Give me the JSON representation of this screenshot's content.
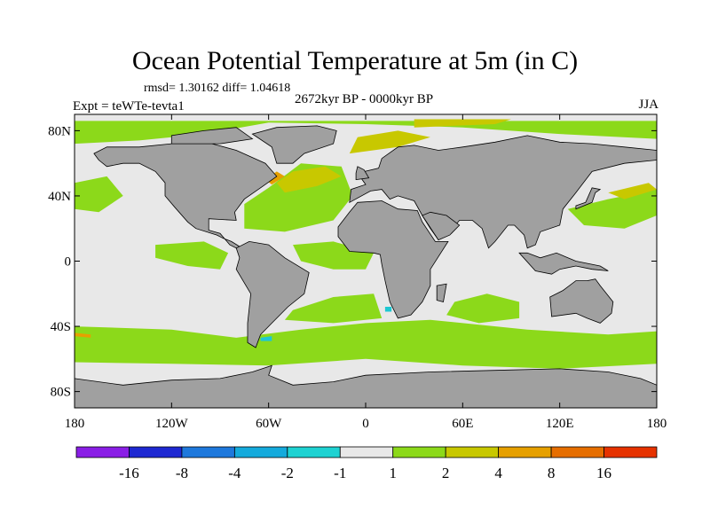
{
  "title": "Ocean Potential Temperature at 5m (in C)",
  "subtitle_stats": "rmsd= 1.30162 diff= 1.04618",
  "period_label": "2672kyr BP - 0000kyr BP",
  "experiment_label": "Expt = teWTe-tevta1",
  "season_label": "JJA",
  "map": {
    "lon_range": [
      -180,
      180
    ],
    "lat_range": [
      -90,
      90
    ],
    "lat_ticks": [
      {
        "lat": 80,
        "label": "80N"
      },
      {
        "lat": 40,
        "label": "40N"
      },
      {
        "lat": 0,
        "label": "0"
      },
      {
        "lat": -40,
        "label": "40S"
      },
      {
        "lat": -80,
        "label": "80S"
      }
    ],
    "lon_ticks": [
      {
        "lon": -180,
        "label": "180"
      },
      {
        "lon": -120,
        "label": "120W"
      },
      {
        "lon": -60,
        "label": "60W"
      },
      {
        "lon": 0,
        "label": "0"
      },
      {
        "lon": 60,
        "label": "60E"
      },
      {
        "lon": 120,
        "label": "120E"
      },
      {
        "lon": 180,
        "label": "180"
      }
    ],
    "colors": {
      "land": "#a0a0a0",
      "neutral": "#e8e8e8",
      "warm1": "#8cd91a",
      "warm2": "#c8c800",
      "warm3": "#e6a000",
      "cool1": "#1ec8d2"
    }
  },
  "colorbar": {
    "colors": [
      "#8a1ee6",
      "#1e28d2",
      "#1e78dc",
      "#14aadc",
      "#1ed2d2",
      "#e8e8e8",
      "#8cd91a",
      "#c8c800",
      "#e6a000",
      "#e66e00",
      "#e63200"
    ],
    "labels": [
      "-16",
      "-8",
      "-4",
      "-2",
      "-1",
      "1",
      "2",
      "4",
      "8",
      "16"
    ]
  }
}
